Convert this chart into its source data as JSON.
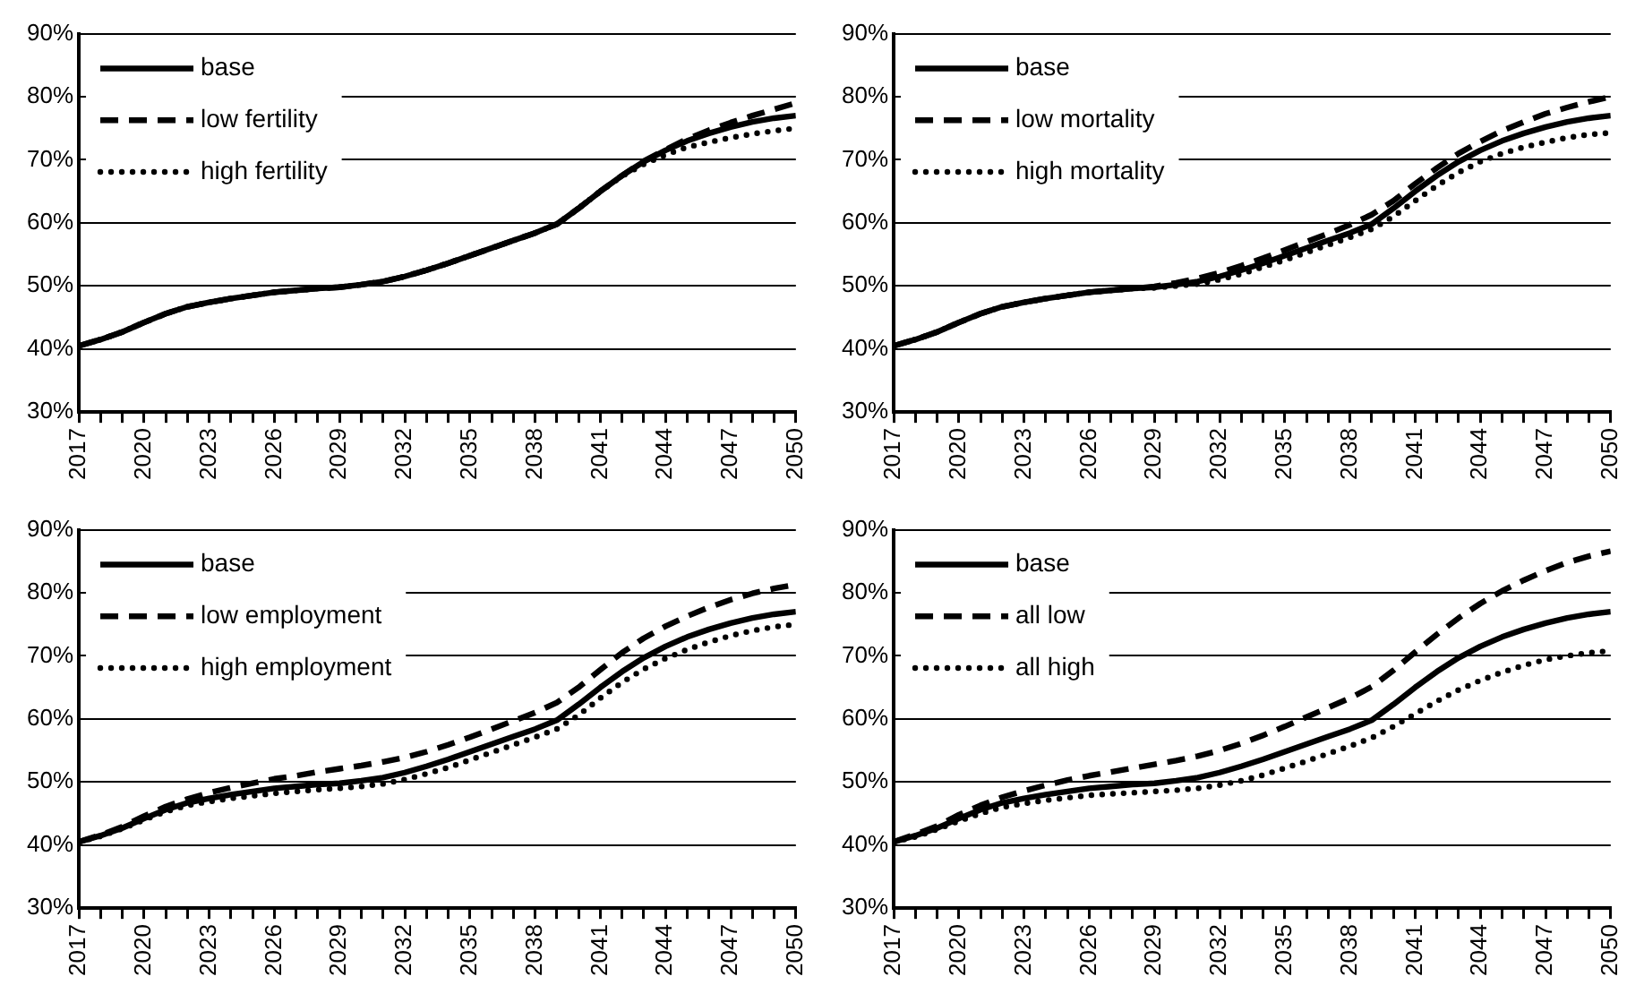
{
  "chart_data": [
    {
      "type": "line",
      "x": [
        2017,
        2018,
        2019,
        2020,
        2021,
        2022,
        2023,
        2024,
        2025,
        2026,
        2027,
        2028,
        2029,
        2030,
        2031,
        2032,
        2033,
        2034,
        2035,
        2036,
        2037,
        2038,
        2039,
        2040,
        2041,
        2042,
        2043,
        2044,
        2045,
        2046,
        2047,
        2048,
        2049,
        2050
      ],
      "xlim": [
        2017,
        2050
      ],
      "xticks": [
        2017,
        {
          "value": 2018,
          "label": null
        },
        {
          "value": 2019,
          "label": null
        },
        2020,
        {
          "value": 2021,
          "label": null
        },
        {
          "value": 2022,
          "label": null
        },
        2023,
        {
          "value": 2024,
          "label": null
        },
        {
          "value": 2025,
          "label": null
        },
        2026,
        {
          "value": 2027,
          "label": null
        },
        {
          "value": 2028,
          "label": null
        },
        2029,
        {
          "value": 2030,
          "label": null
        },
        {
          "value": 2031,
          "label": null
        },
        2032,
        {
          "value": 2033,
          "label": null
        },
        {
          "value": 2034,
          "label": null
        },
        2035,
        {
          "value": 2036,
          "label": null
        },
        {
          "value": 2037,
          "label": null
        },
        2038,
        {
          "value": 2039,
          "label": null
        },
        {
          "value": 2040,
          "label": null
        },
        2041,
        {
          "value": 2042,
          "label": null
        },
        {
          "value": 2043,
          "label": null
        },
        2044,
        {
          "value": 2045,
          "label": null
        },
        {
          "value": 2046,
          "label": null
        },
        2047,
        {
          "value": 2048,
          "label": null
        },
        {
          "value": 2049,
          "label": null
        },
        2050
      ],
      "ylim": [
        30,
        90
      ],
      "yticks": [
        {
          "value": 30,
          "label": "30%"
        },
        {
          "value": 40,
          "label": "40%"
        },
        {
          "value": 50,
          "label": "50%"
        },
        {
          "value": 60,
          "label": "60%"
        },
        {
          "value": 70,
          "label": "70%"
        },
        {
          "value": 80,
          "label": "80%"
        },
        {
          "value": 90,
          "label": "90%"
        }
      ],
      "grid": "y",
      "legend": "top left",
      "marker": "none",
      "series": [
        {
          "name": "base",
          "color": "#000000",
          "line_style": "solid",
          "values": [
            40.5,
            41.5,
            42.7,
            44.2,
            45.6,
            46.7,
            47.4,
            48.0,
            48.5,
            49.0,
            49.3,
            49.6,
            49.8,
            50.2,
            50.7,
            51.5,
            52.5,
            53.6,
            54.8,
            56.0,
            57.2,
            58.4,
            59.8,
            62.3,
            65.0,
            67.5,
            69.7,
            71.5,
            73.0,
            74.2,
            75.2,
            76.0,
            76.6,
            77.0
          ]
        },
        {
          "name": "low fertility",
          "color": "#000000",
          "line_style": "dashed",
          "values": [
            40.5,
            41.5,
            42.7,
            44.2,
            45.6,
            46.7,
            47.4,
            48.0,
            48.5,
            49.0,
            49.3,
            49.6,
            49.8,
            50.2,
            50.7,
            51.5,
            52.5,
            53.6,
            54.8,
            56.0,
            57.2,
            58.4,
            59.8,
            62.3,
            65.0,
            67.5,
            69.8,
            71.6,
            73.3,
            74.7,
            75.9,
            77.0,
            78.0,
            79.0
          ]
        },
        {
          "name": "high fertility",
          "color": "#000000",
          "line_style": "dotted",
          "values": [
            40.5,
            41.5,
            42.7,
            44.2,
            45.6,
            46.7,
            47.4,
            48.0,
            48.5,
            49.0,
            49.3,
            49.6,
            49.8,
            50.2,
            50.7,
            51.5,
            52.5,
            53.6,
            54.8,
            56.0,
            57.2,
            58.4,
            59.8,
            62.3,
            65.0,
            67.4,
            69.3,
            70.8,
            72.0,
            72.8,
            73.5,
            74.1,
            74.6,
            75.0
          ]
        }
      ]
    },
    {
      "type": "line",
      "x": [
        2017,
        2018,
        2019,
        2020,
        2021,
        2022,
        2023,
        2024,
        2025,
        2026,
        2027,
        2028,
        2029,
        2030,
        2031,
        2032,
        2033,
        2034,
        2035,
        2036,
        2037,
        2038,
        2039,
        2040,
        2041,
        2042,
        2043,
        2044,
        2045,
        2046,
        2047,
        2048,
        2049,
        2050
      ],
      "xlim": [
        2017,
        2050
      ],
      "xticks": [
        2017,
        {
          "value": 2018,
          "label": null
        },
        {
          "value": 2019,
          "label": null
        },
        2020,
        {
          "value": 2021,
          "label": null
        },
        {
          "value": 2022,
          "label": null
        },
        2023,
        {
          "value": 2024,
          "label": null
        },
        {
          "value": 2025,
          "label": null
        },
        2026,
        {
          "value": 2027,
          "label": null
        },
        {
          "value": 2028,
          "label": null
        },
        2029,
        {
          "value": 2030,
          "label": null
        },
        {
          "value": 2031,
          "label": null
        },
        2032,
        {
          "value": 2033,
          "label": null
        },
        {
          "value": 2034,
          "label": null
        },
        2035,
        {
          "value": 2036,
          "label": null
        },
        {
          "value": 2037,
          "label": null
        },
        2038,
        {
          "value": 2039,
          "label": null
        },
        {
          "value": 2040,
          "label": null
        },
        2041,
        {
          "value": 2042,
          "label": null
        },
        {
          "value": 2043,
          "label": null
        },
        2044,
        {
          "value": 2045,
          "label": null
        },
        {
          "value": 2046,
          "label": null
        },
        2047,
        {
          "value": 2048,
          "label": null
        },
        {
          "value": 2049,
          "label": null
        },
        2050
      ],
      "ylim": [
        30,
        90
      ],
      "yticks": [
        {
          "value": 30,
          "label": "30%"
        },
        {
          "value": 40,
          "label": "40%"
        },
        {
          "value": 50,
          "label": "50%"
        },
        {
          "value": 60,
          "label": "60%"
        },
        {
          "value": 70,
          "label": "70%"
        },
        {
          "value": 80,
          "label": "80%"
        },
        {
          "value": 90,
          "label": "90%"
        }
      ],
      "grid": "y",
      "legend": "top left",
      "marker": "none",
      "series": [
        {
          "name": "base",
          "color": "#000000",
          "line_style": "solid",
          "values": [
            40.5,
            41.5,
            42.7,
            44.2,
            45.6,
            46.7,
            47.4,
            48.0,
            48.5,
            49.0,
            49.3,
            49.6,
            49.8,
            50.2,
            50.7,
            51.5,
            52.5,
            53.6,
            54.8,
            56.0,
            57.2,
            58.4,
            59.8,
            62.3,
            65.0,
            67.5,
            69.7,
            71.5,
            73.0,
            74.2,
            75.2,
            76.0,
            76.6,
            77.0
          ]
        },
        {
          "name": "low mortality",
          "color": "#000000",
          "line_style": "dashed",
          "values": [
            40.5,
            41.5,
            42.7,
            44.2,
            45.6,
            46.7,
            47.4,
            48.0,
            48.5,
            49.0,
            49.3,
            49.6,
            49.9,
            50.5,
            51.2,
            52.1,
            53.2,
            54.4,
            55.7,
            57.0,
            58.3,
            59.7,
            61.3,
            63.5,
            66.2,
            68.7,
            71.0,
            72.9,
            74.6,
            76.0,
            77.3,
            78.3,
            79.2,
            80.0
          ]
        },
        {
          "name": "high mortality",
          "color": "#000000",
          "line_style": "dotted",
          "values": [
            40.5,
            41.5,
            42.7,
            44.2,
            45.6,
            46.7,
            47.4,
            48.0,
            48.5,
            49.0,
            49.3,
            49.6,
            49.7,
            50.0,
            50.3,
            51.0,
            51.9,
            53.0,
            54.1,
            55.3,
            56.5,
            57.7,
            59.0,
            61.0,
            63.5,
            65.9,
            68.0,
            69.7,
            71.0,
            72.0,
            72.8,
            73.5,
            74.0,
            74.3
          ]
        }
      ]
    },
    {
      "type": "line",
      "x": [
        2017,
        2018,
        2019,
        2020,
        2021,
        2022,
        2023,
        2024,
        2025,
        2026,
        2027,
        2028,
        2029,
        2030,
        2031,
        2032,
        2033,
        2034,
        2035,
        2036,
        2037,
        2038,
        2039,
        2040,
        2041,
        2042,
        2043,
        2044,
        2045,
        2046,
        2047,
        2048,
        2049,
        2050
      ],
      "xlim": [
        2017,
        2050
      ],
      "xticks": [
        2017,
        {
          "value": 2018,
          "label": null
        },
        {
          "value": 2019,
          "label": null
        },
        2020,
        {
          "value": 2021,
          "label": null
        },
        {
          "value": 2022,
          "label": null
        },
        2023,
        {
          "value": 2024,
          "label": null
        },
        {
          "value": 2025,
          "label": null
        },
        2026,
        {
          "value": 2027,
          "label": null
        },
        {
          "value": 2028,
          "label": null
        },
        2029,
        {
          "value": 2030,
          "label": null
        },
        {
          "value": 2031,
          "label": null
        },
        2032,
        {
          "value": 2033,
          "label": null
        },
        {
          "value": 2034,
          "label": null
        },
        2035,
        {
          "value": 2036,
          "label": null
        },
        {
          "value": 2037,
          "label": null
        },
        2038,
        {
          "value": 2039,
          "label": null
        },
        {
          "value": 2040,
          "label": null
        },
        2041,
        {
          "value": 2042,
          "label": null
        },
        {
          "value": 2043,
          "label": null
        },
        2044,
        {
          "value": 2045,
          "label": null
        },
        {
          "value": 2046,
          "label": null
        },
        2047,
        {
          "value": 2048,
          "label": null
        },
        {
          "value": 2049,
          "label": null
        },
        2050
      ],
      "ylim": [
        30,
        90
      ],
      "yticks": [
        {
          "value": 30,
          "label": "30%"
        },
        {
          "value": 40,
          "label": "40%"
        },
        {
          "value": 50,
          "label": "50%"
        },
        {
          "value": 60,
          "label": "60%"
        },
        {
          "value": 70,
          "label": "70%"
        },
        {
          "value": 80,
          "label": "80%"
        },
        {
          "value": 90,
          "label": "90%"
        }
      ],
      "grid": "y",
      "legend": "top left",
      "marker": "none",
      "series": [
        {
          "name": "base",
          "color": "#000000",
          "line_style": "solid",
          "values": [
            40.5,
            41.5,
            42.7,
            44.2,
            45.6,
            46.7,
            47.4,
            48.0,
            48.5,
            49.0,
            49.3,
            49.6,
            49.8,
            50.2,
            50.7,
            51.5,
            52.5,
            53.6,
            54.8,
            56.0,
            57.2,
            58.4,
            59.8,
            62.3,
            65.0,
            67.5,
            69.7,
            71.5,
            73.0,
            74.2,
            75.2,
            76.0,
            76.6,
            77.0
          ]
        },
        {
          "name": "low employment",
          "color": "#000000",
          "line_style": "dashed",
          "values": [
            40.5,
            41.6,
            42.9,
            44.6,
            46.1,
            47.3,
            48.3,
            49.1,
            49.8,
            50.5,
            51.0,
            51.6,
            52.1,
            52.6,
            53.2,
            53.9,
            54.8,
            55.9,
            57.1,
            58.4,
            59.7,
            61.0,
            62.6,
            65.0,
            67.8,
            70.5,
            72.8,
            74.7,
            76.3,
            77.7,
            78.9,
            79.9,
            80.7,
            81.3
          ]
        },
        {
          "name": "high employment",
          "color": "#000000",
          "line_style": "dotted",
          "values": [
            40.5,
            41.4,
            42.6,
            44.0,
            45.3,
            46.3,
            46.9,
            47.4,
            47.8,
            48.2,
            48.5,
            48.8,
            49.0,
            49.3,
            49.7,
            50.4,
            51.3,
            52.3,
            53.5,
            54.7,
            55.9,
            57.1,
            58.4,
            60.6,
            63.3,
            65.8,
            67.9,
            69.6,
            71.0,
            72.2,
            73.2,
            74.0,
            74.6,
            75.0
          ]
        }
      ]
    },
    {
      "type": "line",
      "x": [
        2017,
        2018,
        2019,
        2020,
        2021,
        2022,
        2023,
        2024,
        2025,
        2026,
        2027,
        2028,
        2029,
        2030,
        2031,
        2032,
        2033,
        2034,
        2035,
        2036,
        2037,
        2038,
        2039,
        2040,
        2041,
        2042,
        2043,
        2044,
        2045,
        2046,
        2047,
        2048,
        2049,
        2050
      ],
      "xlim": [
        2017,
        2050
      ],
      "xticks": [
        2017,
        {
          "value": 2018,
          "label": null
        },
        {
          "value": 2019,
          "label": null
        },
        2020,
        {
          "value": 2021,
          "label": null
        },
        {
          "value": 2022,
          "label": null
        },
        2023,
        {
          "value": 2024,
          "label": null
        },
        {
          "value": 2025,
          "label": null
        },
        2026,
        {
          "value": 2027,
          "label": null
        },
        {
          "value": 2028,
          "label": null
        },
        2029,
        {
          "value": 2030,
          "label": null
        },
        {
          "value": 2031,
          "label": null
        },
        2032,
        {
          "value": 2033,
          "label": null
        },
        {
          "value": 2034,
          "label": null
        },
        2035,
        {
          "value": 2036,
          "label": null
        },
        {
          "value": 2037,
          "label": null
        },
        2038,
        {
          "value": 2039,
          "label": null
        },
        {
          "value": 2040,
          "label": null
        },
        2041,
        {
          "value": 2042,
          "label": null
        },
        {
          "value": 2043,
          "label": null
        },
        2044,
        {
          "value": 2045,
          "label": null
        },
        {
          "value": 2046,
          "label": null
        },
        2047,
        {
          "value": 2048,
          "label": null
        },
        {
          "value": 2049,
          "label": null
        },
        2050
      ],
      "ylim": [
        30,
        90
      ],
      "yticks": [
        {
          "value": 30,
          "label": "30%"
        },
        {
          "value": 40,
          "label": "40%"
        },
        {
          "value": 50,
          "label": "50%"
        },
        {
          "value": 60,
          "label": "60%"
        },
        {
          "value": 70,
          "label": "70%"
        },
        {
          "value": 80,
          "label": "80%"
        },
        {
          "value": 90,
          "label": "90%"
        }
      ],
      "grid": "y",
      "legend": "top left",
      "marker": "none",
      "series": [
        {
          "name": "base",
          "color": "#000000",
          "line_style": "solid",
          "values": [
            40.5,
            41.5,
            42.7,
            44.2,
            45.6,
            46.7,
            47.4,
            48.0,
            48.5,
            49.0,
            49.3,
            49.6,
            49.8,
            50.2,
            50.7,
            51.5,
            52.5,
            53.6,
            54.8,
            56.0,
            57.2,
            58.4,
            59.8,
            62.3,
            65.0,
            67.5,
            69.7,
            71.5,
            73.0,
            74.2,
            75.2,
            76.0,
            76.6,
            77.0
          ]
        },
        {
          "name": "all low",
          "color": "#000000",
          "line_style": "dashed",
          "values": [
            40.5,
            41.7,
            43.0,
            44.8,
            46.3,
            47.6,
            48.6,
            49.5,
            50.3,
            51.0,
            51.6,
            52.2,
            52.8,
            53.4,
            54.1,
            55.0,
            56.1,
            57.4,
            58.8,
            60.3,
            61.8,
            63.3,
            65.1,
            67.7,
            70.6,
            73.4,
            76.0,
            78.3,
            80.3,
            82.0,
            83.5,
            84.8,
            85.8,
            86.6
          ]
        },
        {
          "name": "all high",
          "color": "#000000",
          "line_style": "dotted",
          "values": [
            40.5,
            41.3,
            42.5,
            43.8,
            45.0,
            46.0,
            46.6,
            47.1,
            47.5,
            47.9,
            48.1,
            48.3,
            48.5,
            48.7,
            49.0,
            49.5,
            50.2,
            51.1,
            52.2,
            53.3,
            54.5,
            55.7,
            57.0,
            58.8,
            60.8,
            62.8,
            64.6,
            66.1,
            67.4,
            68.5,
            69.4,
            70.0,
            70.5,
            70.8
          ]
        }
      ]
    }
  ]
}
